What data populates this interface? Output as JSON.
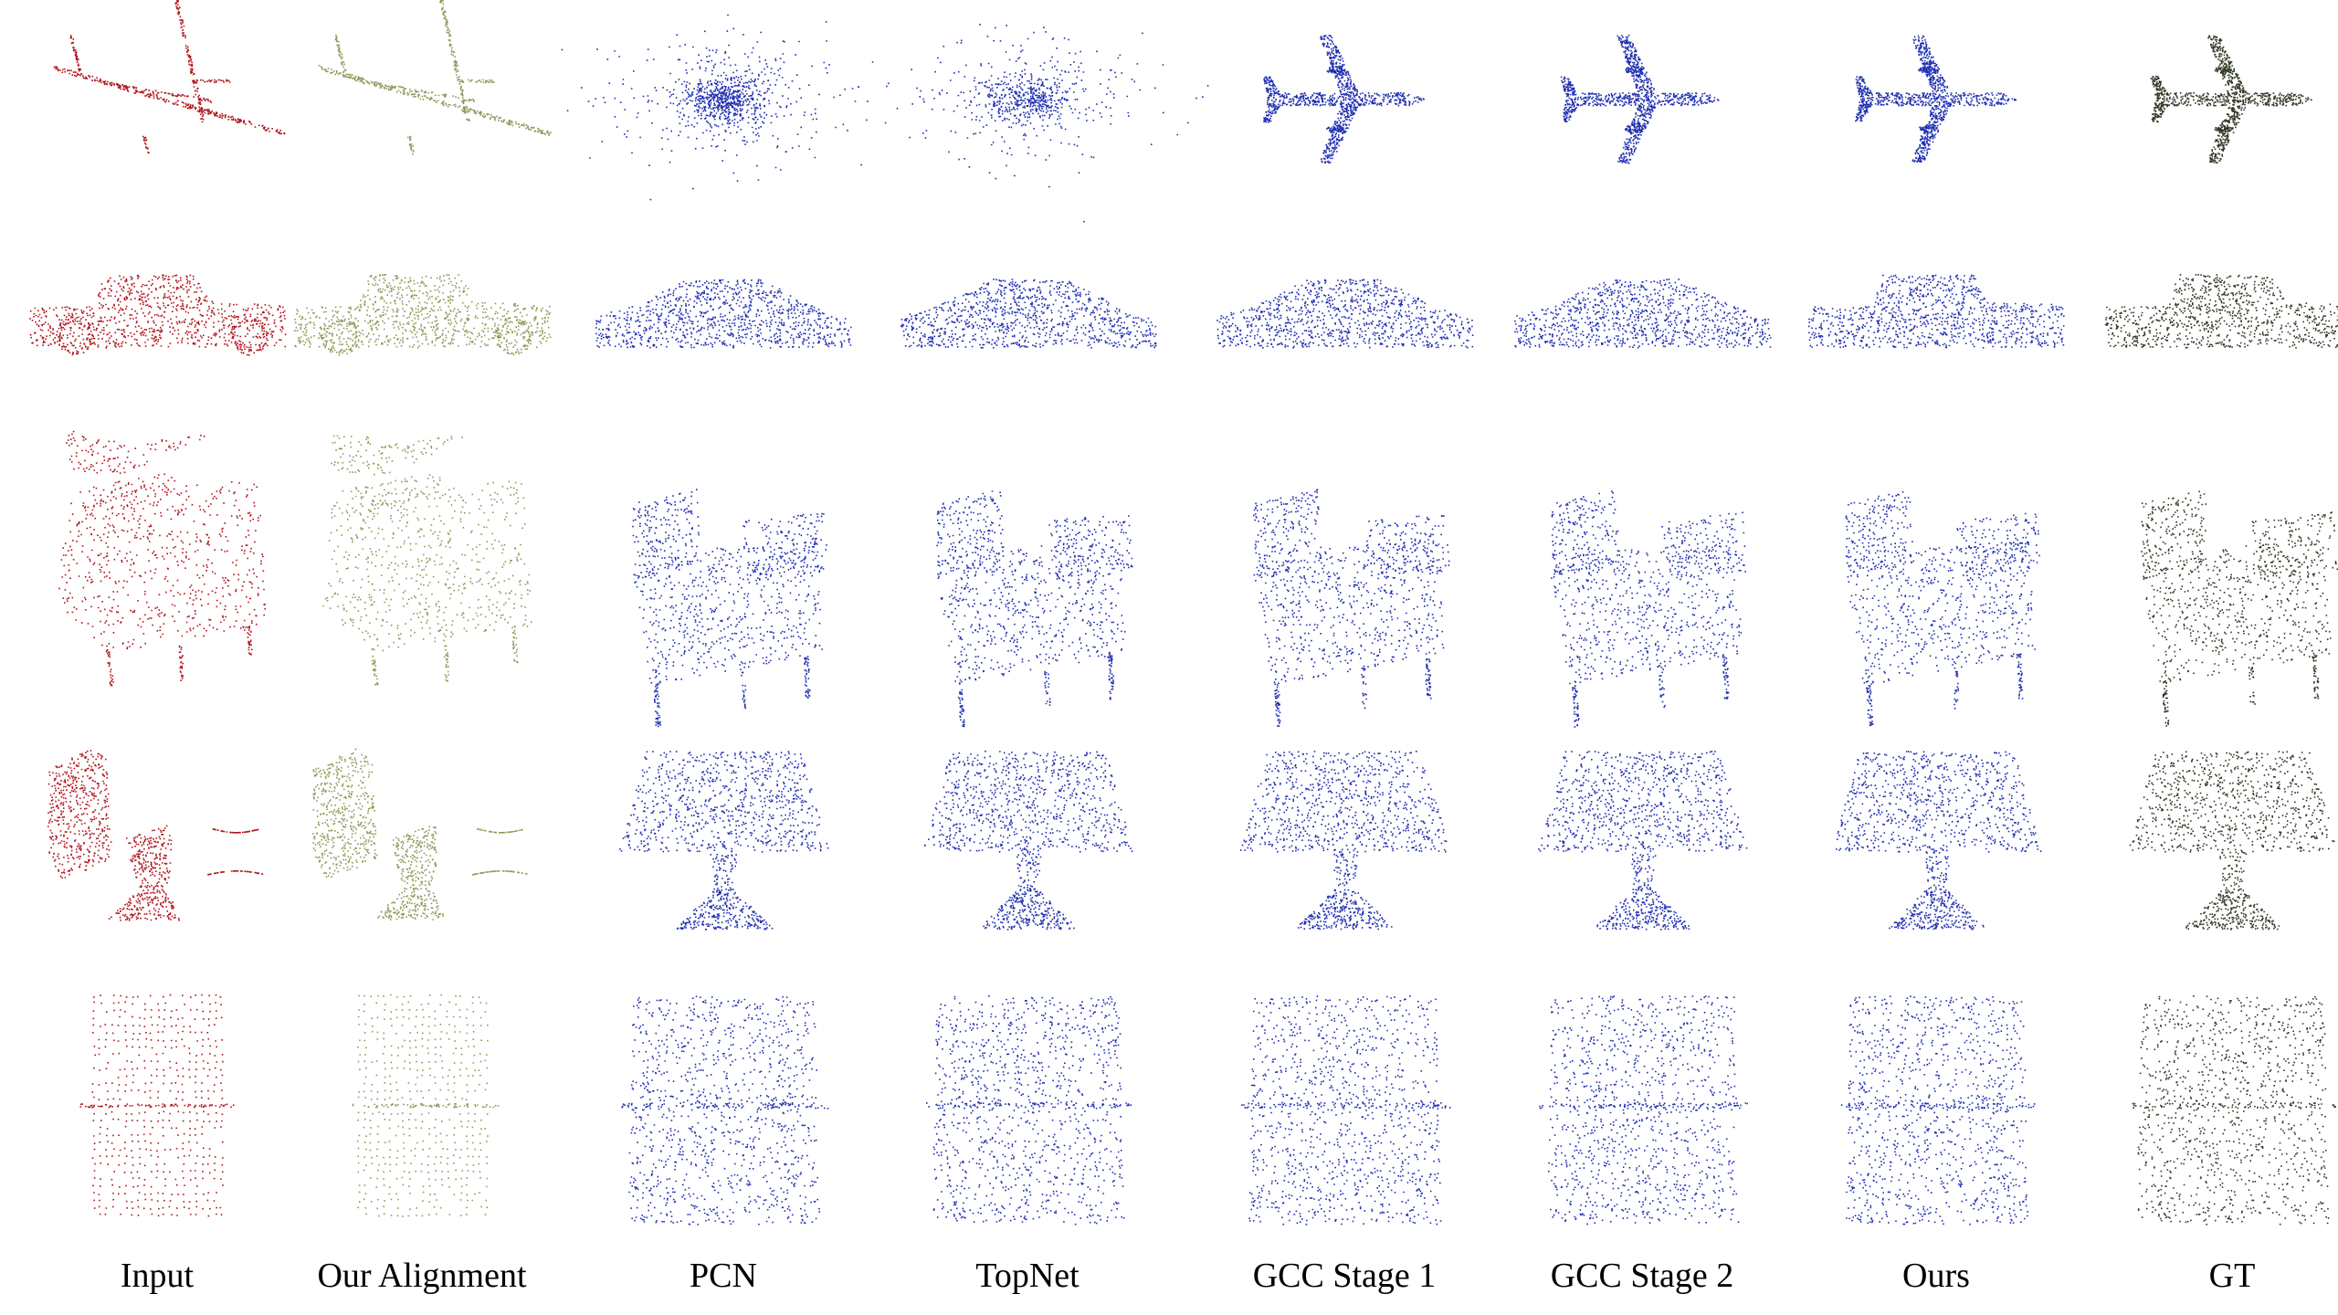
{
  "columns": [
    {
      "id": "input",
      "label": "Input",
      "color": "#b0141b"
    },
    {
      "id": "alignment",
      "label": "Our Alignment",
      "color": "#8c9a58"
    },
    {
      "id": "pcn",
      "label": "PCN",
      "color": "#1f2fb0"
    },
    {
      "id": "topnet",
      "label": "TopNet",
      "color": "#1f2fb0"
    },
    {
      "id": "gcc1",
      "label": "GCC Stage 1",
      "color": "#1f2fb0"
    },
    {
      "id": "gcc2",
      "label": "GCC Stage 2",
      "color": "#1f2fb0"
    },
    {
      "id": "ours",
      "label": "Ours",
      "color": "#1f2fb0"
    },
    {
      "id": "gt",
      "label": "GT",
      "color": "#303824"
    }
  ],
  "rows": [
    {
      "id": "airplane",
      "object": "airplane"
    },
    {
      "id": "car",
      "object": "car"
    },
    {
      "id": "chair",
      "object": "armchair"
    },
    {
      "id": "lamp",
      "object": "lamp"
    },
    {
      "id": "cabinet",
      "object": "cabinet"
    }
  ]
}
